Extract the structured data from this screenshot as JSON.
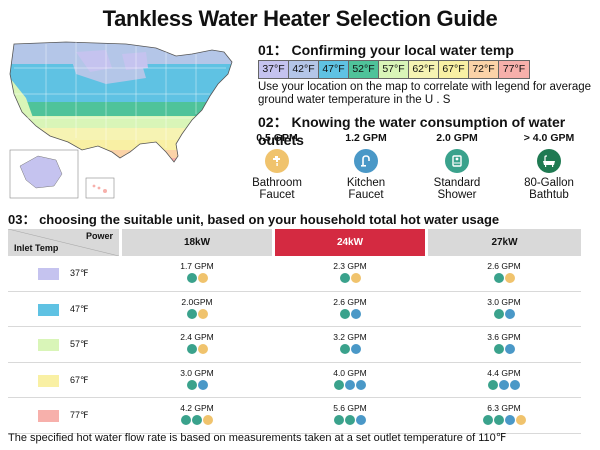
{
  "title": "Tankless Water Heater Selection Guide",
  "colors": {
    "t37": "#c5c3ef",
    "t42": "#b4c6e8",
    "t47": "#5fc2e3",
    "t52": "#4fc39a",
    "t57": "#d9f5b8",
    "t62": "#f6f3b3",
    "t67": "#f9f0a4",
    "t72": "#fbd3a8",
    "t77": "#f7b0ab",
    "highlight": "#d42a41",
    "header_gray": "#d9d9d9"
  },
  "section1": {
    "heading": "01： Confirming your local water temp",
    "legend": [
      "37°F",
      "42°F",
      "47°F",
      "52°F",
      "57°F",
      "62°F",
      "67°F",
      "72°F",
      "77°F"
    ],
    "description": "Use your location on the map to correlate with legend for average ground water temperature in the U . S"
  },
  "section2": {
    "heading": "02： Knowing the water consumption of water outlets",
    "outlets": [
      {
        "gpm": "0.5 GPM",
        "line1": "Bathroom",
        "line2": "Faucet",
        "icon": "bathroom-faucet-icon"
      },
      {
        "gpm": "1.2 GPM",
        "line1": "Kitchen",
        "line2": "Faucet",
        "icon": "kitchen-faucet-icon"
      },
      {
        "gpm": "2.0 GPM",
        "line1": "Standard",
        "line2": "Shower",
        "icon": "shower-icon"
      },
      {
        "gpm": "> 4.0 GPM",
        "line1": "80-Gallon",
        "line2": "Bathtub",
        "icon": "bathtub-icon"
      }
    ]
  },
  "section3": {
    "heading": "03： choosing the suitable unit, based on your household total hot water usage",
    "header": {
      "power": "Power",
      "inlet": "Inlet Temp",
      "cols": [
        "18kW",
        "24kW",
        "27kW"
      ]
    },
    "rows": [
      {
        "temp": "37℉",
        "values": [
          "1.7 GPM",
          "2.3 GPM",
          "2.6 GPM"
        ],
        "icons": [
          [
            "t",
            "f"
          ],
          [
            "t",
            "f"
          ],
          [
            "t",
            "f"
          ]
        ]
      },
      {
        "temp": "47℉",
        "values": [
          "2.0GPM",
          "2.6 GPM",
          "3.0 GPM"
        ],
        "icons": [
          [
            "t",
            "f"
          ],
          [
            "t",
            "k"
          ],
          [
            "t",
            "k"
          ]
        ]
      },
      {
        "temp": "57℉",
        "values": [
          "2.4 GPM",
          "3.2 GPM",
          "3.6 GPM"
        ],
        "icons": [
          [
            "t",
            "f"
          ],
          [
            "t",
            "k"
          ],
          [
            "t",
            "k"
          ]
        ]
      },
      {
        "temp": "67℉",
        "values": [
          "3.0 GPM",
          "4.0 GPM",
          "4.4 GPM"
        ],
        "icons": [
          [
            "t",
            "k"
          ],
          [
            "t",
            "k",
            "k"
          ],
          [
            "t",
            "k",
            "k"
          ]
        ]
      },
      {
        "temp": "77℉",
        "values": [
          "4.2 GPM",
          "5.6 GPM",
          "6.3 GPM"
        ],
        "icons": [
          [
            "t",
            "t",
            "f"
          ],
          [
            "t",
            "t",
            "k"
          ],
          [
            "t",
            "t",
            "k",
            "f"
          ]
        ]
      }
    ]
  },
  "footer": "The specified hot water flow rate is based on measurements taken at a set outlet temperature of 110℉"
}
